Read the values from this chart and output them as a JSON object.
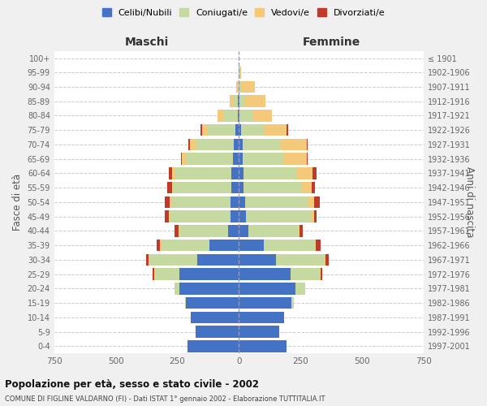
{
  "age_groups": [
    "0-4",
    "5-9",
    "10-14",
    "15-19",
    "20-24",
    "25-29",
    "30-34",
    "35-39",
    "40-44",
    "45-49",
    "50-54",
    "55-59",
    "60-64",
    "65-69",
    "70-74",
    "75-79",
    "80-84",
    "85-89",
    "90-94",
    "95-99",
    "100+"
  ],
  "birth_years": [
    "1997-2001",
    "1992-1996",
    "1987-1991",
    "1982-1986",
    "1977-1981",
    "1972-1976",
    "1967-1971",
    "1962-1966",
    "1957-1961",
    "1952-1956",
    "1947-1951",
    "1942-1946",
    "1937-1941",
    "1932-1936",
    "1927-1931",
    "1922-1926",
    "1917-1921",
    "1912-1916",
    "1907-1911",
    "1902-1906",
    "≤ 1901"
  ],
  "male": {
    "celibi": [
      210,
      175,
      195,
      215,
      240,
      240,
      170,
      120,
      45,
      35,
      35,
      30,
      30,
      25,
      20,
      15,
      5,
      3,
      0,
      0,
      0
    ],
    "coniugati": [
      0,
      0,
      0,
      5,
      20,
      100,
      195,
      195,
      195,
      245,
      240,
      235,
      230,
      190,
      155,
      115,
      55,
      20,
      5,
      2,
      0
    ],
    "vedovi": [
      0,
      0,
      0,
      0,
      0,
      5,
      3,
      5,
      5,
      5,
      5,
      5,
      10,
      15,
      25,
      20,
      25,
      15,
      5,
      0,
      0
    ],
    "divorziati": [
      0,
      0,
      0,
      0,
      0,
      5,
      10,
      15,
      15,
      15,
      20,
      20,
      15,
      5,
      5,
      5,
      0,
      0,
      0,
      0,
      0
    ]
  },
  "female": {
    "nubili": [
      195,
      165,
      185,
      215,
      230,
      210,
      150,
      100,
      40,
      30,
      25,
      20,
      20,
      15,
      15,
      10,
      3,
      2,
      0,
      0,
      0
    ],
    "coniugate": [
      0,
      0,
      0,
      8,
      40,
      120,
      200,
      210,
      200,
      265,
      255,
      235,
      215,
      170,
      155,
      90,
      55,
      25,
      10,
      3,
      0
    ],
    "vedove": [
      0,
      0,
      0,
      0,
      0,
      3,
      3,
      3,
      5,
      10,
      25,
      40,
      65,
      90,
      105,
      95,
      75,
      80,
      55,
      5,
      0
    ],
    "divorziate": [
      0,
      0,
      0,
      0,
      0,
      5,
      12,
      20,
      15,
      10,
      25,
      15,
      15,
      5,
      5,
      5,
      0,
      0,
      0,
      0,
      0
    ]
  },
  "colors": {
    "celibi": "#4472C4",
    "coniugati": "#c5d9a0",
    "vedovi": "#f5c97a",
    "divorziati": "#c0392b"
  },
  "xlim": 750,
  "title": "Popolazione per età, sesso e stato civile - 2002",
  "subtitle": "COMUNE DI FIGLINE VALDARNO (FI) - Dati ISTAT 1° gennaio 2002 - Elaborazione TUTTITALIA.IT",
  "xlabel_left": "Maschi",
  "xlabel_right": "Femmine",
  "ylabel_left": "Fasce di età",
  "ylabel_right": "Anni di nascita",
  "legend_labels": [
    "Celibi/Nubili",
    "Coniugati/e",
    "Vedovi/e",
    "Divorziati/e"
  ],
  "bg_color": "#f0f0f0",
  "plot_bg": "#ffffff"
}
